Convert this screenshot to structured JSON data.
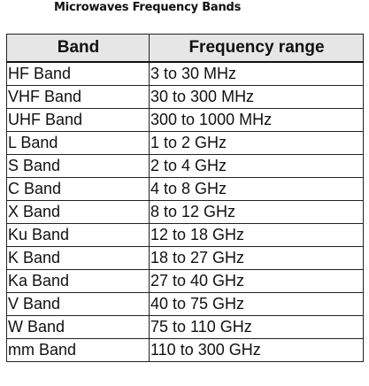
{
  "title": "Microwaves Frequency Bands",
  "table": {
    "headers": [
      "Band",
      "Frequency range"
    ],
    "rows": [
      {
        "band": "HF Band",
        "range": "3 to 30 MHz"
      },
      {
        "band": "VHF Band",
        "range": "30 to 300 MHz"
      },
      {
        "band": "UHF Band",
        "range": "300 to 1000 MHz"
      },
      {
        "band": "L Band",
        "range": "1 to 2 GHz"
      },
      {
        "band": "S Band",
        "range": "2 to 4 GHz"
      },
      {
        "band": "C Band",
        "range": "4 to 8 GHz"
      },
      {
        "band": "X Band",
        "range": "8 to 12 GHz"
      },
      {
        "band": "Ku Band",
        "range": "12 to 18 GHz"
      },
      {
        "band": "K Band",
        "range": "18 to 27 GHz"
      },
      {
        "band": "Ka Band",
        "range": "27 to 40 GHz"
      },
      {
        "band": "V Band",
        "range": "40 to 75 GHz"
      },
      {
        "band": "W Band",
        "range": "75 to 110 GHz"
      },
      {
        "band": "mm Band",
        "range": "110 to 300 GHz"
      }
    ]
  },
  "colors": {
    "header_background": "#e6e6e6",
    "border": "#222222",
    "text": "#111111"
  }
}
